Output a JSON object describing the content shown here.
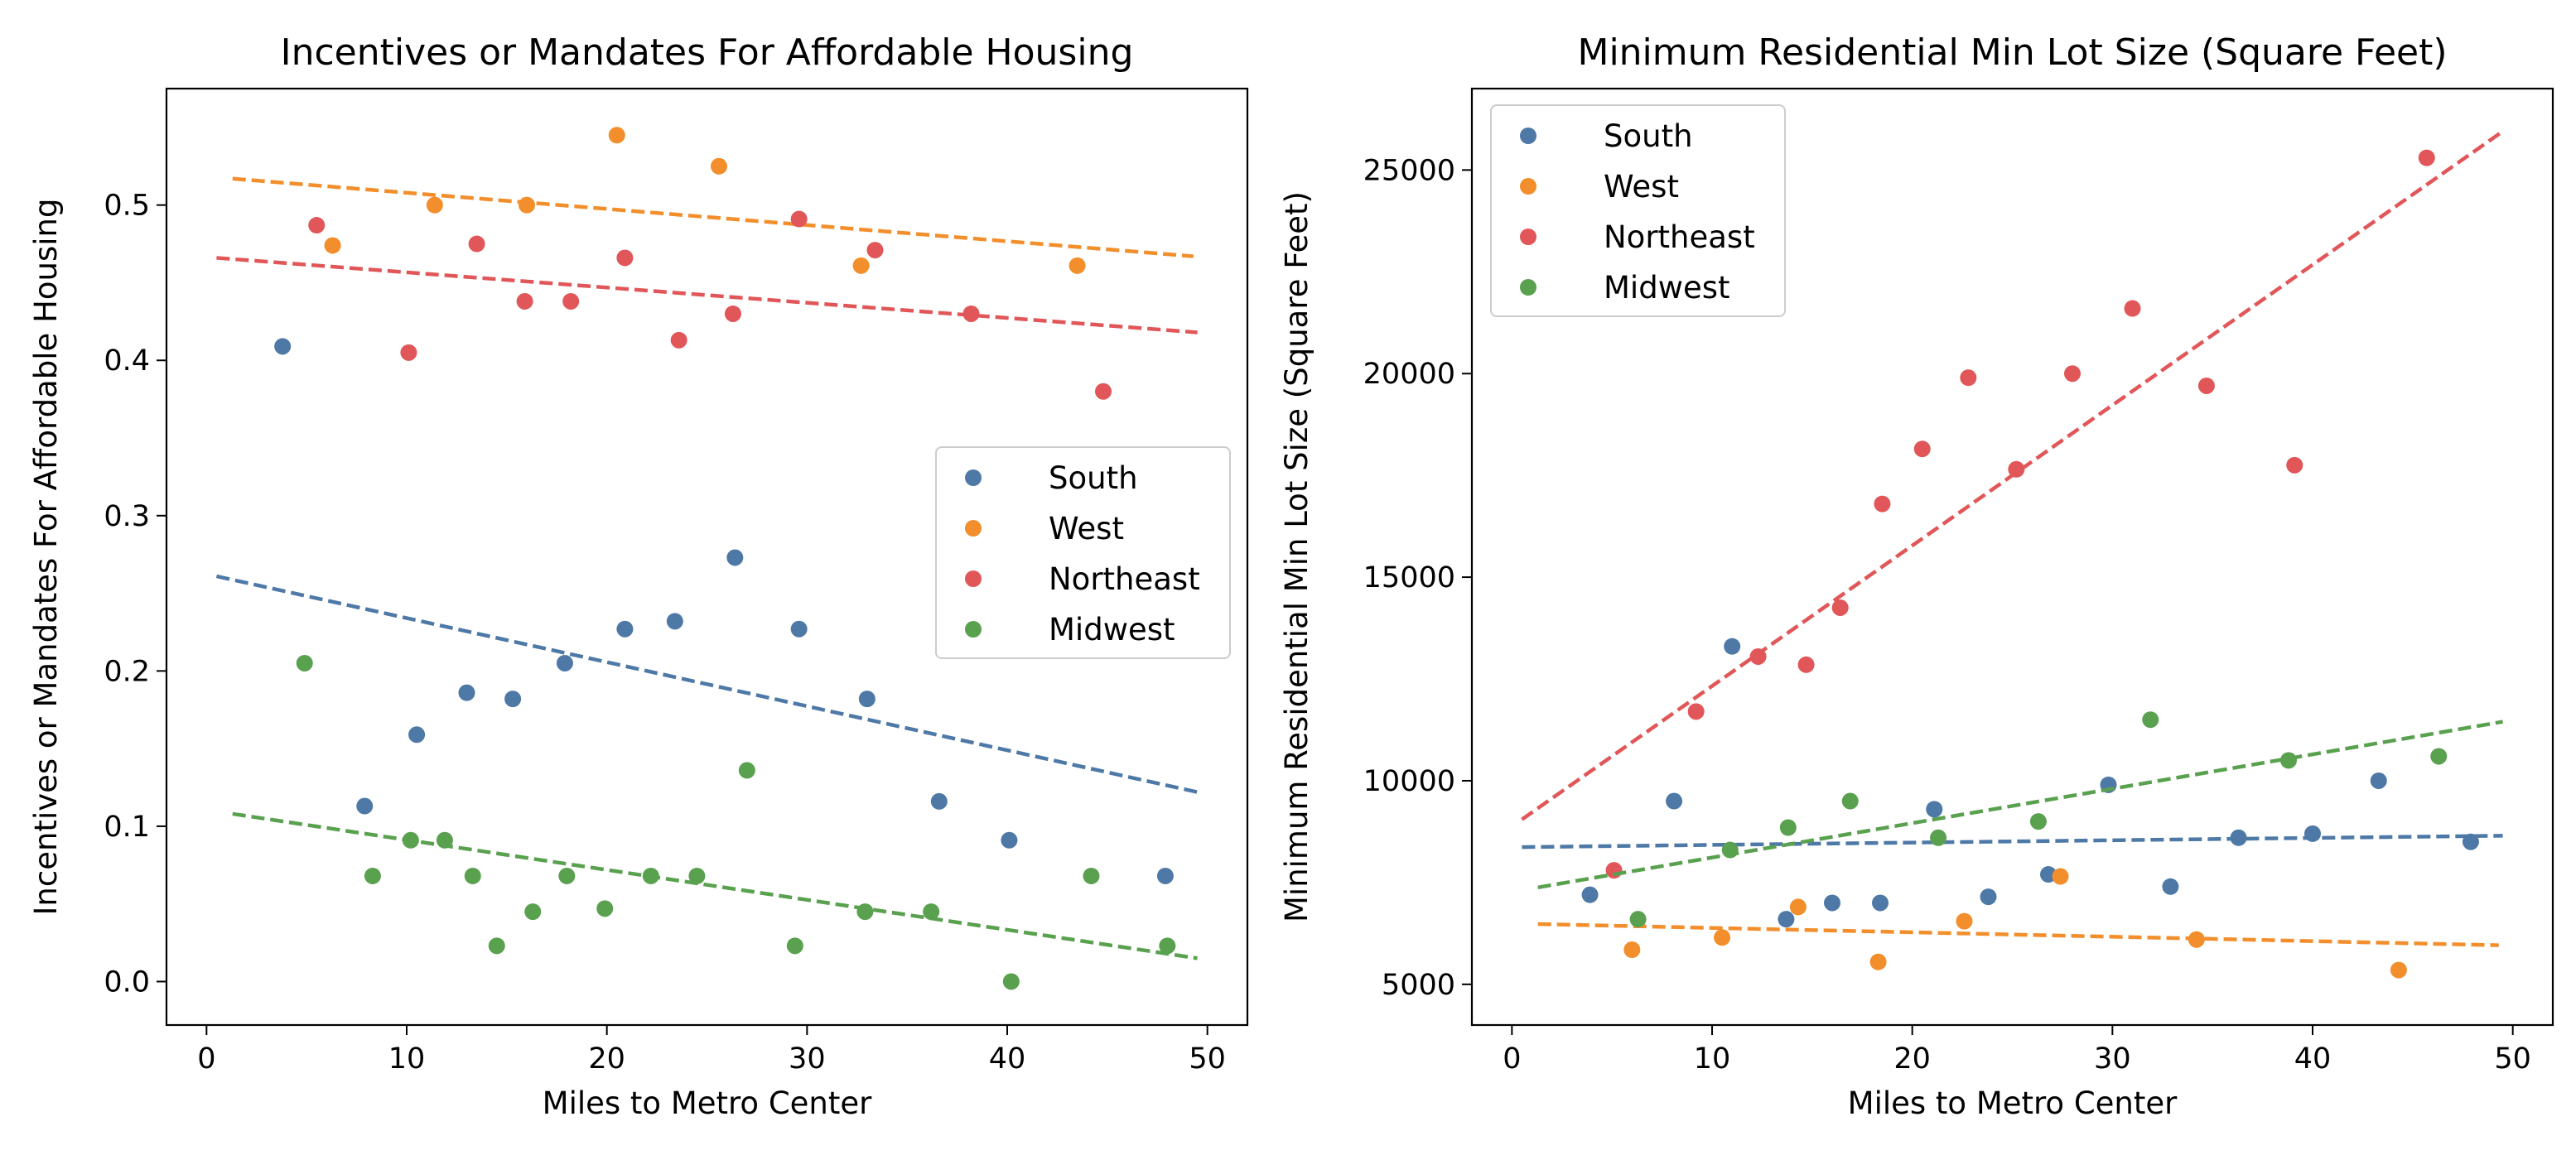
{
  "colors": {
    "South": "#4e79a7",
    "West": "#f28e2b",
    "Northeast": "#e15759",
    "Midwest": "#59a14f",
    "frame": "#000000",
    "legend_border": "#cccccc"
  },
  "chart_data": [
    {
      "type": "scatter",
      "title": "Incentives or Mandates For Affordable Housing",
      "xlabel": "Miles to Metro Center",
      "ylabel": "Incentives or Mandates For Affordable Housing",
      "xlim": [
        -2,
        52
      ],
      "ylim": [
        -0.028,
        0.575
      ],
      "xticks": [
        0,
        10,
        20,
        30,
        40,
        50
      ],
      "xtick_labels": [
        "0",
        "10",
        "20",
        "30",
        "40",
        "50"
      ],
      "yticks": [
        0.0,
        0.1,
        0.2,
        0.3,
        0.4,
        0.5
      ],
      "ytick_labels": [
        "0.0",
        "0.1",
        "0.2",
        "0.3",
        "0.4",
        "0.5"
      ],
      "legend": "center-right",
      "grid": false,
      "series": [
        {
          "name": "South",
          "points": [
            [
              3.8,
              0.409
            ],
            [
              7.9,
              0.113
            ],
            [
              10.5,
              0.159
            ],
            [
              13.0,
              0.186
            ],
            [
              15.3,
              0.182
            ],
            [
              17.9,
              0.205
            ],
            [
              20.9,
              0.227
            ],
            [
              23.4,
              0.232
            ],
            [
              26.4,
              0.273
            ],
            [
              29.6,
              0.227
            ],
            [
              33.0,
              0.182
            ],
            [
              36.6,
              0.116
            ],
            [
              40.1,
              0.091
            ],
            [
              47.9,
              0.068
            ]
          ],
          "trend": [
            [
              0.5,
              0.261
            ],
            [
              49.5,
              0.122
            ]
          ]
        },
        {
          "name": "West",
          "points": [
            [
              6.3,
              0.474
            ],
            [
              11.4,
              0.5
            ],
            [
              16.0,
              0.5
            ],
            [
              20.5,
              0.545
            ],
            [
              25.6,
              0.525
            ],
            [
              32.7,
              0.461
            ],
            [
              43.5,
              0.461
            ]
          ],
          "trend": [
            [
              1.3,
              0.517
            ],
            [
              49.3,
              0.467
            ]
          ]
        },
        {
          "name": "Northeast",
          "points": [
            [
              5.5,
              0.487
            ],
            [
              10.1,
              0.405
            ],
            [
              13.5,
              0.475
            ],
            [
              15.9,
              0.438
            ],
            [
              18.2,
              0.438
            ],
            [
              20.9,
              0.466
            ],
            [
              23.6,
              0.413
            ],
            [
              26.3,
              0.43
            ],
            [
              29.6,
              0.491
            ],
            [
              33.4,
              0.471
            ],
            [
              38.2,
              0.43
            ],
            [
              44.8,
              0.38
            ]
          ],
          "trend": [
            [
              0.5,
              0.466
            ],
            [
              49.5,
              0.418
            ]
          ]
        },
        {
          "name": "Midwest",
          "points": [
            [
              4.9,
              0.205
            ],
            [
              8.3,
              0.068
            ],
            [
              10.2,
              0.091
            ],
            [
              11.9,
              0.091
            ],
            [
              13.3,
              0.068
            ],
            [
              14.5,
              0.023
            ],
            [
              16.3,
              0.045
            ],
            [
              18.0,
              0.068
            ],
            [
              19.9,
              0.047
            ],
            [
              22.2,
              0.068
            ],
            [
              24.5,
              0.068
            ],
            [
              27.0,
              0.136
            ],
            [
              29.4,
              0.023
            ],
            [
              32.9,
              0.045
            ],
            [
              36.2,
              0.045
            ],
            [
              40.2,
              0.0
            ],
            [
              44.2,
              0.068
            ],
            [
              48.0,
              0.023
            ]
          ],
          "trend": [
            [
              1.3,
              0.108
            ],
            [
              49.5,
              0.015
            ]
          ]
        }
      ]
    },
    {
      "type": "scatter",
      "title": "Minimum Residential Min Lot Size (Square Feet)",
      "xlabel": "Miles to Metro Center",
      "ylabel": "Minimum Residential Min Lot Size (Square Feet)",
      "xlim": [
        -2,
        52
      ],
      "ylim": [
        4000,
        27000
      ],
      "xticks": [
        0,
        10,
        20,
        30,
        40,
        50
      ],
      "xtick_labels": [
        "0",
        "10",
        "20",
        "30",
        "40",
        "50"
      ],
      "yticks": [
        5000,
        10000,
        15000,
        20000,
        25000
      ],
      "ytick_labels": [
        "5000",
        "10000",
        "15000",
        "20000",
        "25000"
      ],
      "legend": "top-left",
      "grid": false,
      "series": [
        {
          "name": "South",
          "points": [
            [
              3.9,
              7200
            ],
            [
              8.1,
              9500
            ],
            [
              11.0,
              13300
            ],
            [
              13.7,
              6600
            ],
            [
              16.0,
              7000
            ],
            [
              18.4,
              7000
            ],
            [
              21.1,
              9300
            ],
            [
              23.8,
              7150
            ],
            [
              26.8,
              7700
            ],
            [
              29.8,
              9900
            ],
            [
              32.9,
              7400
            ],
            [
              36.3,
              8600
            ],
            [
              40.0,
              8700
            ],
            [
              43.3,
              10000
            ],
            [
              47.9,
              8500
            ]
          ],
          "trend": [
            [
              0.5,
              8370
            ],
            [
              49.5,
              8650
            ]
          ]
        },
        {
          "name": "West",
          "points": [
            [
              6.0,
              5850
            ],
            [
              10.5,
              6150
            ],
            [
              14.3,
              6900
            ],
            [
              18.3,
              5550
            ],
            [
              22.6,
              6550
            ],
            [
              27.4,
              7650
            ],
            [
              34.2,
              6100
            ],
            [
              44.3,
              5350
            ]
          ],
          "trend": [
            [
              1.3,
              6480
            ],
            [
              49.3,
              5960
            ]
          ]
        },
        {
          "name": "Northeast",
          "points": [
            [
              5.1,
              7800
            ],
            [
              9.2,
              11700
            ],
            [
              12.3,
              13050
            ],
            [
              14.7,
              12850
            ],
            [
              16.4,
              14250
            ],
            [
              18.5,
              16800
            ],
            [
              20.5,
              18150
            ],
            [
              22.8,
              19900
            ],
            [
              25.2,
              17650
            ],
            [
              28.0,
              20000
            ],
            [
              31.0,
              21600
            ],
            [
              34.7,
              19700
            ],
            [
              39.1,
              17750
            ],
            [
              45.7,
              25300
            ]
          ],
          "trend": [
            [
              0.5,
              9050
            ],
            [
              49.5,
              25950
            ]
          ]
        },
        {
          "name": "Midwest",
          "points": [
            [
              6.3,
              6600
            ],
            [
              10.9,
              8300
            ],
            [
              13.8,
              8850
            ],
            [
              16.9,
              9500
            ],
            [
              21.3,
              8600
            ],
            [
              26.3,
              9000
            ],
            [
              31.9,
              11500
            ],
            [
              38.8,
              10500
            ],
            [
              46.3,
              10600
            ]
          ],
          "trend": [
            [
              1.3,
              7380
            ],
            [
              49.5,
              11450
            ]
          ]
        }
      ]
    }
  ]
}
